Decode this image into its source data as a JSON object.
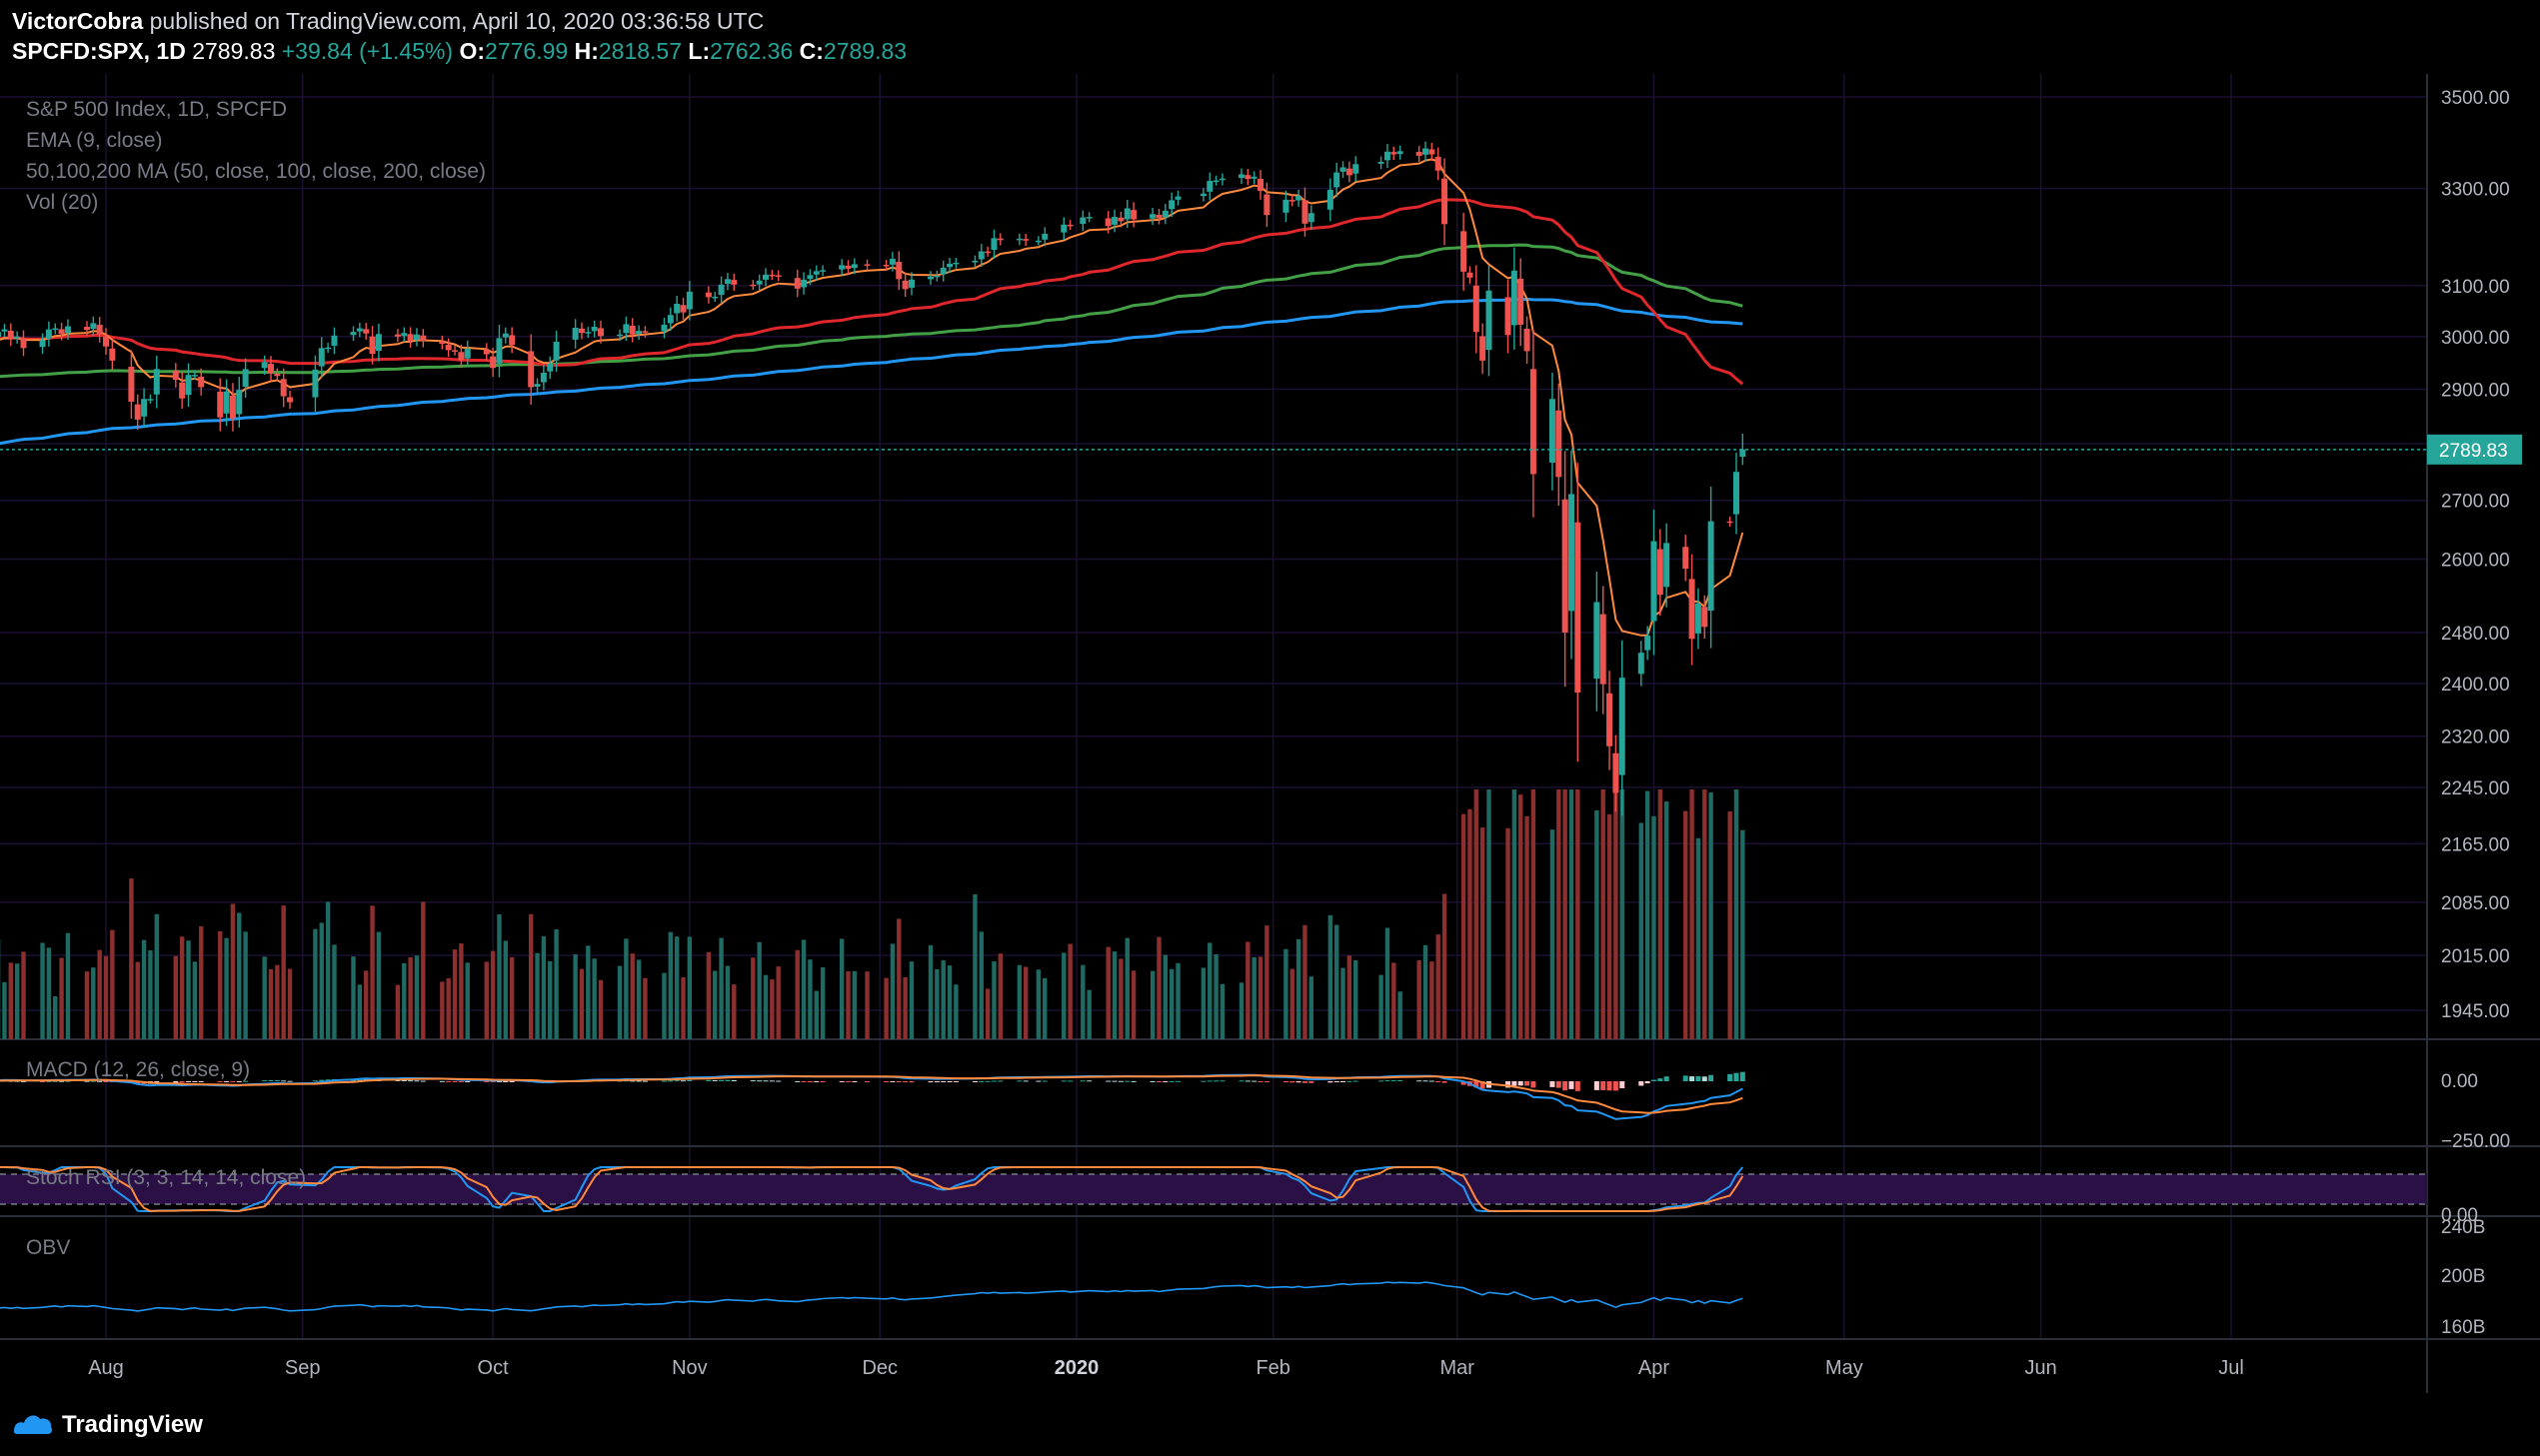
{
  "header": {
    "author": "VictorCobra",
    "published_text": "published on TradingView.com, April 10, 2020 03:36:58 UTC",
    "symbol": "SPCFD:SPX, 1D",
    "last": "2789.83",
    "change": "+39.84 (+1.45%)",
    "o_label": "O:",
    "o_value": "2776.99",
    "h_label": "H:",
    "h_value": "2818.57",
    "l_label": "L:",
    "l_value": "2762.36",
    "c_label": "C:",
    "c_value": "2789.83"
  },
  "legend": {
    "instrument": "S&P 500 Index, 1D, SPCFD",
    "ema": "EMA (9, close)",
    "ma": "50,100,200 MA (50, close, 100, close, 200, close)",
    "vol": "Vol (20)",
    "macd": "MACD (12, 26, close, 9)",
    "stoch": "Stoch RSI (3, 3, 14, 14, close)",
    "obv": "OBV"
  },
  "footer": {
    "brand": "TradingView"
  },
  "colors": {
    "up": "#26a69a",
    "down": "#ef5350",
    "vol_up": "#1f6b64",
    "vol_down": "#8c2f2f",
    "ema": "#ff8a3d",
    "ma50": "#e0272c",
    "ma100": "#43a047",
    "ma200": "#2196f3",
    "macd": "#2196f3",
    "signal": "#ff8a3d",
    "grid": "#1b1030",
    "separator": "#2a2e39",
    "price_line": "#26a69a",
    "stoch_band": "#2a1045"
  },
  "chart_data": {
    "type": "candlestick",
    "title": "S&P 500 Index, 1D, SPCFD",
    "x_labels": [
      "Aug",
      "Sep",
      "Oct",
      "Nov",
      "Dec",
      "2020",
      "Feb",
      "Mar",
      "Apr",
      "May",
      "Jun",
      "Jul"
    ],
    "price_axis": {
      "scale": "log",
      "ticks": [
        "3500.00",
        "3300.00",
        "3100.00",
        "3000.00",
        "2900.00",
        "2800.00",
        "2700.00",
        "2600.00",
        "2480.00",
        "2400.00",
        "2320.00",
        "2245.00",
        "2165.00",
        "2085.00",
        "2015.00",
        "1945.00"
      ],
      "last_price_label": "2789.83",
      "last_price": 2789.83
    },
    "macd_axis": {
      "ticks": [
        "0.00",
        "−250.00"
      ]
    },
    "stoch_axis": {
      "ticks": [
        "0.00"
      ]
    },
    "obv_axis": {
      "ticks": [
        "240B",
        "200B",
        "160B"
      ]
    },
    "start_date": "2019-07-08",
    "closes": [
      2977,
      2985,
      2995,
      3005,
      2998,
      3009,
      3014,
      2996,
      3000,
      2978,
      2993,
      3014,
      3016,
      3005,
      3020,
      3013,
      3026,
      3004,
      2981,
      2954,
      2877,
      2844,
      2882,
      2882,
      2938,
      2918,
      2883,
      2927,
      2927,
      2904,
      2848,
      2896,
      2846,
      2899,
      2938,
      2951,
      2930,
      2925,
      2887,
      2876,
      2937,
      2978,
      2979,
      3002,
      3009,
      3016,
      3006,
      2967,
      3005,
      3000,
      3007,
      2992,
      3004,
      2992,
      2986,
      2974,
      2973,
      2955,
      2977,
      2966,
      2940,
      2997,
      3006,
      2984,
      2904,
      2910,
      2931,
      2948,
      2990,
      3017,
      3007,
      3009,
      3019,
      3001,
      3004,
      3024,
      3004,
      3011,
      3008,
      3023,
      3042,
      3064,
      3047,
      3088,
      3077,
      3078,
      3102,
      3113,
      3102,
      3101,
      3110,
      3122,
      3121,
      3119,
      3094,
      3112,
      3121,
      3129,
      3131,
      3141,
      3134,
      3143,
      3142,
      3140,
      3154,
      3113,
      3093,
      3112,
      3118,
      3120,
      3136,
      3144,
      3146,
      3150,
      3169,
      3168,
      3196,
      3192,
      3195,
      3191,
      3191,
      3205,
      3224,
      3223,
      3239,
      3240,
      3221,
      3240,
      3231,
      3258,
      3235,
      3246,
      3237,
      3253,
      3275,
      3283,
      3289,
      3316,
      3317,
      3321,
      3330,
      3320,
      3325,
      3295,
      3244,
      3276,
      3273,
      3284,
      3226,
      3248,
      3297,
      3334,
      3345,
      3328,
      3352,
      3357,
      3379,
      3373,
      3380,
      3370,
      3386,
      3373,
      3338,
      3225,
      3128,
      3116,
      3009,
      2954,
      3090,
      3003,
      3130,
      3023,
      2972,
      2746,
      2882,
      2741,
      2480,
      2711,
      2386,
      2529,
      2399,
      2305,
      2237,
      2409,
      2448,
      2475,
      2630,
      2541,
      2627,
      2584,
      2470,
      2527,
      2489,
      2664,
      2663,
      2750,
      2790
    ]
  }
}
